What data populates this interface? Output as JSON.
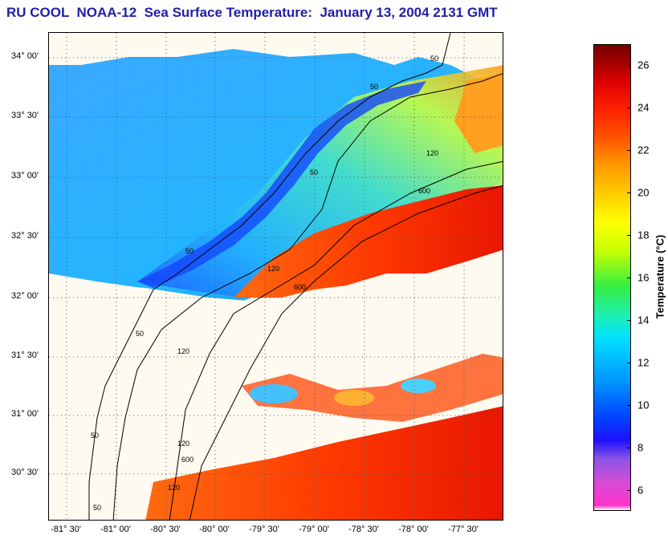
{
  "title": "RU COOL  NOAA-12  Sea Surface Temperature:  January 13, 2004 2131 GMT",
  "map": {
    "latitude_labels": [
      "34° 00'",
      "33° 30'",
      "33° 00'",
      "32° 30'",
      "32° 00'",
      "31° 30'",
      "31° 00'",
      "30° 30'"
    ],
    "longitude_labels": [
      "-81° 30'",
      "-81° 00'",
      "-80° 30'",
      "-80° 00'",
      "-79° 30'",
      "-79° 00'",
      "-78° 30'",
      "-78° 00'",
      "-77° 30'"
    ],
    "isobath_labels": [
      "50",
      "50",
      "50",
      "50",
      "120",
      "120",
      "600",
      "600",
      "50",
      "120",
      "120",
      "600",
      "50",
      "120",
      "50"
    ],
    "cloud_mask_color": "#fffaf0",
    "coastline_color": "#000000"
  },
  "colorbar": {
    "label": "Temperature (°C)",
    "ticks": [
      "26",
      "24",
      "22",
      "20",
      "18",
      "16",
      "14",
      "12",
      "10",
      "8",
      "6"
    ],
    "tick_values": [
      26,
      24,
      22,
      20,
      18,
      16,
      14,
      12,
      10,
      8,
      6
    ],
    "range": [
      5,
      27
    ]
  }
}
